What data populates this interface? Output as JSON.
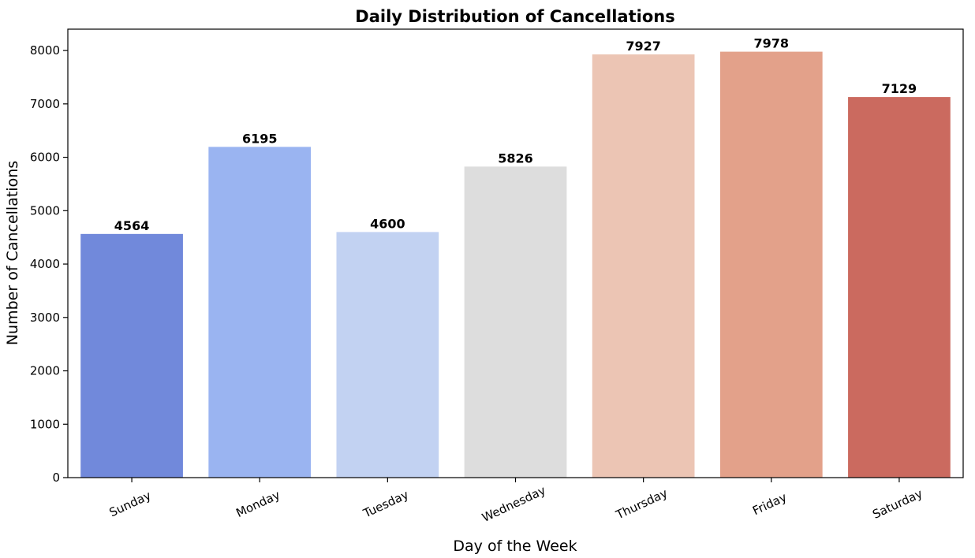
{
  "chart_data": {
    "type": "bar",
    "title": "Daily Distribution of Cancellations",
    "xlabel": "Day of the Week",
    "ylabel": "Number of Cancellations",
    "categories": [
      "Sunday",
      "Monday",
      "Tuesday",
      "Wednesday",
      "Thursday",
      "Friday",
      "Saturday"
    ],
    "values": [
      4564,
      6195,
      4600,
      5826,
      7927,
      7978,
      7129
    ],
    "data_labels": [
      "4564",
      "6195",
      "4600",
      "5826",
      "7927",
      "7978",
      "7129"
    ],
    "colors": [
      "#7189db",
      "#9ab4f1",
      "#c2d2f2",
      "#dddddd",
      "#ecc5b4",
      "#e3a18a",
      "#cb6a5f"
    ],
    "ylim": [
      0,
      8400
    ],
    "yticks": [
      0,
      1000,
      2000,
      3000,
      4000,
      5000,
      6000,
      7000,
      8000
    ],
    "ytick_labels": [
      "0",
      "1000",
      "2000",
      "3000",
      "4000",
      "5000",
      "6000",
      "7000",
      "8000"
    ],
    "grid": false,
    "legend": "none"
  }
}
